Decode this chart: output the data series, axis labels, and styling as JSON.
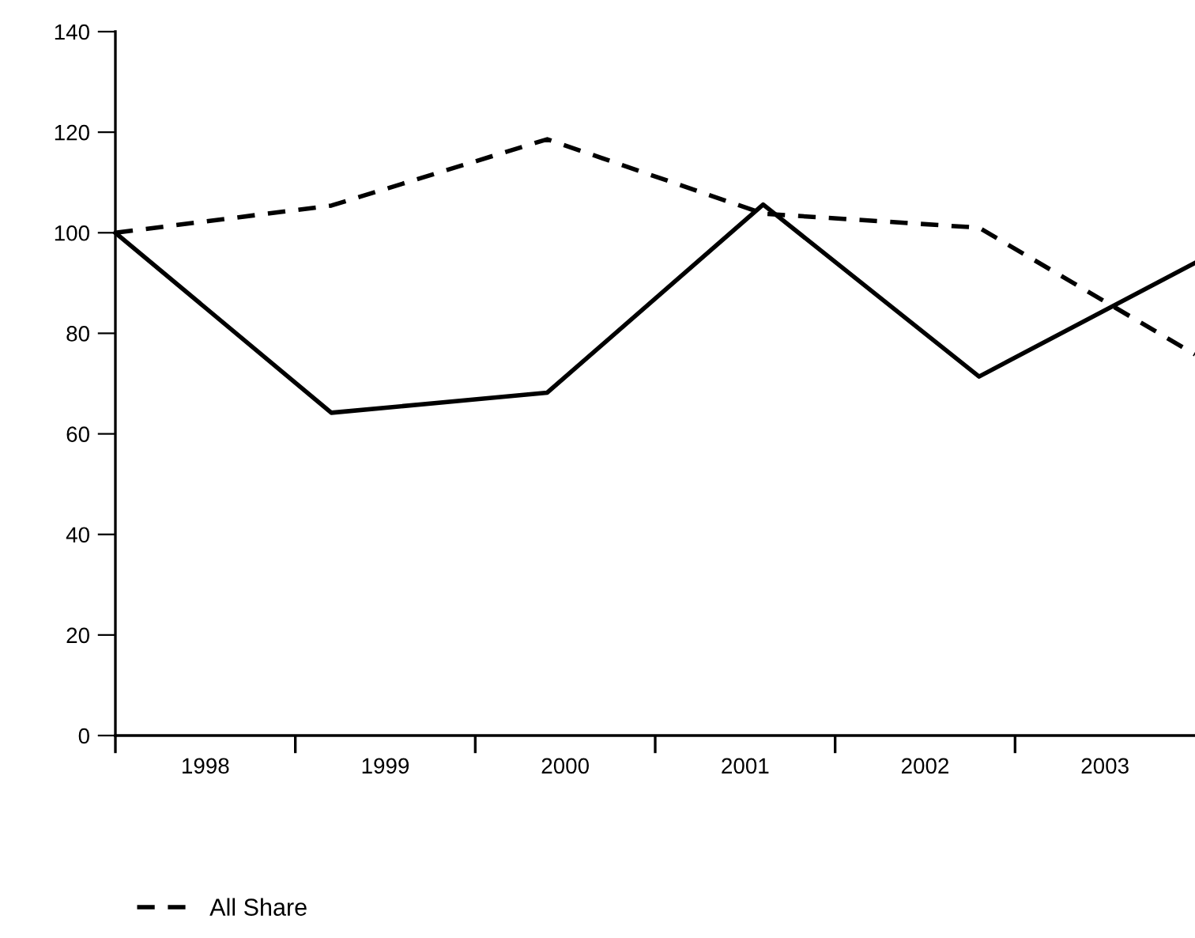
{
  "chart_data": {
    "type": "line",
    "x": [
      1998,
      1999.2,
      2000.4,
      2001.6,
      2002.8,
      2004.0
    ],
    "series": [
      {
        "color": "#000000",
        "line_style": "solid",
        "values": [
          100,
          64.2,
          68.2,
          105.6,
          71.4,
          94
        ]
      },
      {
        "name": "All Share",
        "color": "#000000",
        "line_style": "dashed",
        "values": [
          100,
          105.4,
          118.6,
          103.8,
          101,
          75.8
        ]
      }
    ],
    "xlim": [
      1998,
      2004
    ],
    "xticks": [
      {
        "value": 1998,
        "label": null
      },
      {
        "value": 1999,
        "label": null
      },
      {
        "value": 2000,
        "label": null
      },
      {
        "value": 2001,
        "label": null
      },
      {
        "value": 2002,
        "label": null
      },
      {
        "value": 2003,
        "label": null
      },
      {
        "value": 1998.5,
        "label": "1998"
      },
      {
        "value": 1999.5,
        "label": "1999"
      },
      {
        "value": 2000.5,
        "label": "2000"
      },
      {
        "value": 2001.5,
        "label": "2001"
      },
      {
        "value": 2002.5,
        "label": "2002"
      },
      {
        "value": 2003.5,
        "label": "2003"
      }
    ],
    "ylim": [
      0,
      140
    ],
    "yticks": [
      0,
      20,
      40,
      60,
      80,
      100,
      120,
      140
    ],
    "grid": false,
    "legend": "bottom left",
    "marker": "none"
  }
}
